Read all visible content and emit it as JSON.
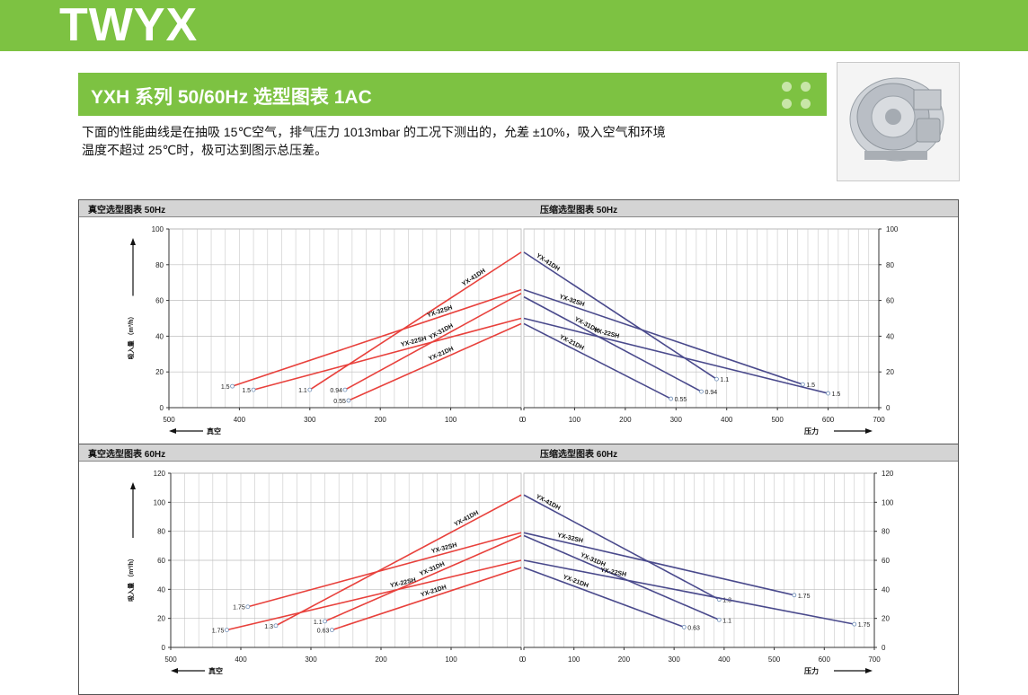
{
  "brand": "TWYX",
  "title": "YXH 系列 50/60Hz 选型图表 1AC",
  "description": {
    "line1": "下面的性能曲线是在抽吸 15℃空气，排气压力 1013mbar 的工况下测出的，允差 ±10%，吸入空气和环境",
    "line2": "温度不超过 25℃时，极可达到图示总压差。"
  },
  "colors": {
    "brand_green": "#7dc242",
    "vacuum_line": "#e8413c",
    "pressure_line": "#4a4a8c"
  },
  "image": {
    "icon": "blower-photo"
  },
  "sections": [
    {
      "vacuum_title": "真空选型图表 50Hz",
      "pressure_title": "压缩选型图表 50Hz"
    },
    {
      "vacuum_title": "真空选型图表 60Hz",
      "pressure_title": "压缩选型图表 60Hz"
    }
  ],
  "axis_labels": {
    "y": "吸入量 （m³/h）",
    "vacuum_x": "真空",
    "pressure_x": "压力"
  },
  "chart_data": [
    {
      "type": "line",
      "title": "真空选型图表 50Hz",
      "xlabel": "真空",
      "ylabel": "吸入量 （m³/h）",
      "xlim": [
        500,
        0
      ],
      "ylim": [
        0,
        100
      ],
      "x_ticks": [
        500,
        400,
        300,
        200,
        100,
        0
      ],
      "y_ticks": [
        0,
        20,
        40,
        60,
        80,
        100
      ],
      "grid": true,
      "series": [
        {
          "name": "YX-41DH",
          "points": [
            [
              300,
              10
            ],
            [
              0,
              87
            ]
          ],
          "end_label": "1.1"
        },
        {
          "name": "YX-32SH",
          "points": [
            [
              410,
              12
            ],
            [
              0,
              66
            ]
          ],
          "end_label": "1.5"
        },
        {
          "name": "YX-31DH",
          "points": [
            [
              250,
              10
            ],
            [
              0,
              64
            ]
          ],
          "end_label": "0.94"
        },
        {
          "name": "YX-22SH",
          "points": [
            [
              380,
              10
            ],
            [
              0,
              50
            ]
          ],
          "end_label": "1.5"
        },
        {
          "name": "YX-21DH",
          "points": [
            [
              245,
              4
            ],
            [
              0,
              47
            ]
          ],
          "end_label": "0.55"
        }
      ]
    },
    {
      "type": "line",
      "title": "压缩选型图表 50Hz",
      "xlabel": "压力",
      "ylabel": "吸入量 （m³/h）",
      "xlim": [
        0,
        700
      ],
      "ylim": [
        0,
        100
      ],
      "x_ticks": [
        0,
        100,
        200,
        300,
        400,
        500,
        600,
        700
      ],
      "y_ticks": [
        0,
        20,
        40,
        60,
        80,
        100
      ],
      "grid": true,
      "series": [
        {
          "name": "YX-41DH",
          "points": [
            [
              0,
              87
            ],
            [
              380,
              16
            ]
          ],
          "end_label": "1.1"
        },
        {
          "name": "YX-32SH",
          "points": [
            [
              0,
              66
            ],
            [
              550,
              13
            ]
          ],
          "end_label": "1.5"
        },
        {
          "name": "YX-31DH",
          "points": [
            [
              0,
              62
            ],
            [
              350,
              9
            ]
          ],
          "end_label": "0.94"
        },
        {
          "name": "YX-22SH",
          "points": [
            [
              0,
              50
            ],
            [
              600,
              8
            ]
          ],
          "end_label": "1.5"
        },
        {
          "name": "YX-21DH",
          "points": [
            [
              0,
              47
            ],
            [
              290,
              5
            ]
          ],
          "end_label": "0.55"
        }
      ]
    },
    {
      "type": "line",
      "title": "真空选型图表 60Hz",
      "xlabel": "真空",
      "ylabel": "吸入量 （m³/h）",
      "xlim": [
        500,
        0
      ],
      "ylim": [
        0,
        120
      ],
      "x_ticks": [
        500,
        400,
        300,
        200,
        100,
        0
      ],
      "y_ticks": [
        0,
        20,
        40,
        60,
        80,
        100,
        120
      ],
      "grid": true,
      "series": [
        {
          "name": "YX-41DH",
          "points": [
            [
              350,
              15
            ],
            [
              0,
              105
            ]
          ],
          "end_label": "1.3"
        },
        {
          "name": "YX-32SH",
          "points": [
            [
              390,
              28
            ],
            [
              0,
              79
            ]
          ],
          "end_label": "1.75"
        },
        {
          "name": "YX-31DH",
          "points": [
            [
              280,
              18
            ],
            [
              0,
              77
            ]
          ],
          "end_label": "1.1"
        },
        {
          "name": "YX-22SH",
          "points": [
            [
              420,
              12
            ],
            [
              0,
              60
            ]
          ],
          "end_label": "1.75"
        },
        {
          "name": "YX-21DH",
          "points": [
            [
              270,
              12
            ],
            [
              0,
              55
            ]
          ],
          "end_label": "0.63"
        }
      ]
    },
    {
      "type": "line",
      "title": "压缩选型图表 60Hz",
      "xlabel": "压力",
      "ylabel": "吸入量 （m³/h）",
      "xlim": [
        0,
        700
      ],
      "ylim": [
        0,
        120
      ],
      "x_ticks": [
        0,
        100,
        200,
        300,
        400,
        500,
        600,
        700
      ],
      "y_ticks": [
        0,
        20,
        40,
        60,
        80,
        100,
        120
      ],
      "grid": true,
      "series": [
        {
          "name": "YX-41DH",
          "points": [
            [
              0,
              105
            ],
            [
              390,
              33
            ]
          ],
          "end_label": "1.3"
        },
        {
          "name": "YX-32SH",
          "points": [
            [
              0,
              79
            ],
            [
              540,
              36
            ]
          ],
          "end_label": "1.75"
        },
        {
          "name": "YX-31DH",
          "points": [
            [
              0,
              77
            ],
            [
              390,
              19
            ]
          ],
          "end_label": "1.1"
        },
        {
          "name": "YX-22SH",
          "points": [
            [
              0,
              60
            ],
            [
              660,
              16
            ]
          ],
          "end_label": "1.75"
        },
        {
          "name": "YX-21DH",
          "points": [
            [
              0,
              55
            ],
            [
              320,
              14
            ]
          ],
          "end_label": "0.63"
        }
      ]
    }
  ]
}
